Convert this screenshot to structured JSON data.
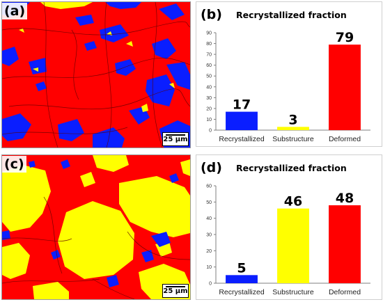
{
  "panels": [
    {
      "label": "(a)",
      "scale_bar": "25 μm"
    },
    {
      "label": "(b)"
    },
    {
      "label": "(c)",
      "scale_bar": "25 μm"
    },
    {
      "label": "(d)"
    }
  ],
  "colors": {
    "recrystallized": "#0a1eff",
    "substructure": "#ffff00",
    "deformed": "#ff0000"
  },
  "chart_data": [
    {
      "type": "bar",
      "title": "Recrystallized fraction",
      "categories": [
        "Recrystallized",
        "Substructure",
        "Deformed"
      ],
      "values": [
        17,
        3,
        79
      ],
      "ylim": [
        0,
        90
      ],
      "yticks": [
        0,
        10,
        20,
        30,
        40,
        50,
        60,
        70,
        80,
        90
      ],
      "grid": false,
      "legend": "none"
    },
    {
      "type": "bar",
      "title": "Recrystallized fraction",
      "categories": [
        "Recrystallized",
        "Substructure",
        "Deformed"
      ],
      "values": [
        5,
        46,
        48
      ],
      "ylim": [
        0,
        60
      ],
      "yticks": [
        0,
        10,
        20,
        30,
        40,
        50,
        60
      ],
      "grid": false,
      "legend": "none"
    }
  ]
}
